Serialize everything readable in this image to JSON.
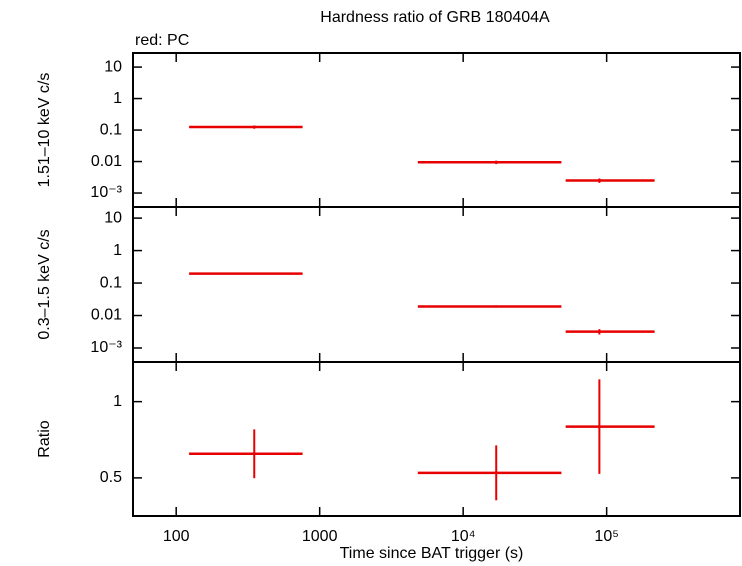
{
  "chart_data": [
    {
      "type": "errorbar",
      "title": "Hardness ratio of GRB 180404A",
      "subtitle": "red: PC",
      "ylabel": "1.51–10 keV c/s",
      "xscale": "log",
      "xlim": [
        50,
        850000
      ],
      "yscale": "log",
      "ylim": [
        0.00036,
        28
      ],
      "yticks": [
        10,
        1,
        0.1,
        0.01,
        {
          "value": 0.001,
          "label": "10⁻³"
        }
      ],
      "color": "#e60000",
      "x": [
        350,
        17000,
        89000
      ],
      "xlow": [
        123,
        4830,
        51800
      ],
      "xhigh": [
        760,
        48400,
        216000
      ],
      "values": [
        0.125,
        0.0095,
        0.0025
      ],
      "errors": [
        0.015,
        0.0012,
        0.0004
      ]
    },
    {
      "type": "errorbar",
      "ylabel": "0.3–1.5 keV c/s",
      "xscale": "log",
      "xlim": [
        50,
        850000
      ],
      "yscale": "log",
      "ylim": [
        0.00037,
        22
      ],
      "yticks": [
        10,
        1,
        0.1,
        0.01,
        {
          "value": 0.001,
          "label": "10⁻³"
        }
      ],
      "color": "#e60000",
      "x": [
        350,
        17000,
        89000
      ],
      "xlow": [
        123,
        4830,
        51800
      ],
      "xhigh": [
        760,
        48400,
        216000
      ],
      "values": [
        0.195,
        0.019,
        0.0032
      ],
      "errors": [
        0.012,
        0.0015,
        0.0006
      ]
    },
    {
      "type": "errorbar",
      "ylabel": "Ratio",
      "xlabel": "Time since BAT trigger (s)",
      "xscale": "log",
      "xlim": [
        50,
        850000
      ],
      "xticks": [
        100,
        1000,
        {
          "value": 10000,
          "label": "10⁴"
        },
        {
          "value": 100000,
          "label": "10⁵"
        }
      ],
      "yscale": "linear",
      "ylim": [
        0.25,
        1.26
      ],
      "yticks": [
        1,
        0.5
      ],
      "color": "#e60000",
      "x": [
        350,
        17000,
        89000
      ],
      "xlow": [
        123,
        4830,
        51800
      ],
      "xhigh": [
        760,
        48400,
        216000
      ],
      "values": [
        0.658,
        0.533,
        0.836
      ],
      "errors": [
        0.16,
        0.18,
        0.31
      ]
    }
  ]
}
